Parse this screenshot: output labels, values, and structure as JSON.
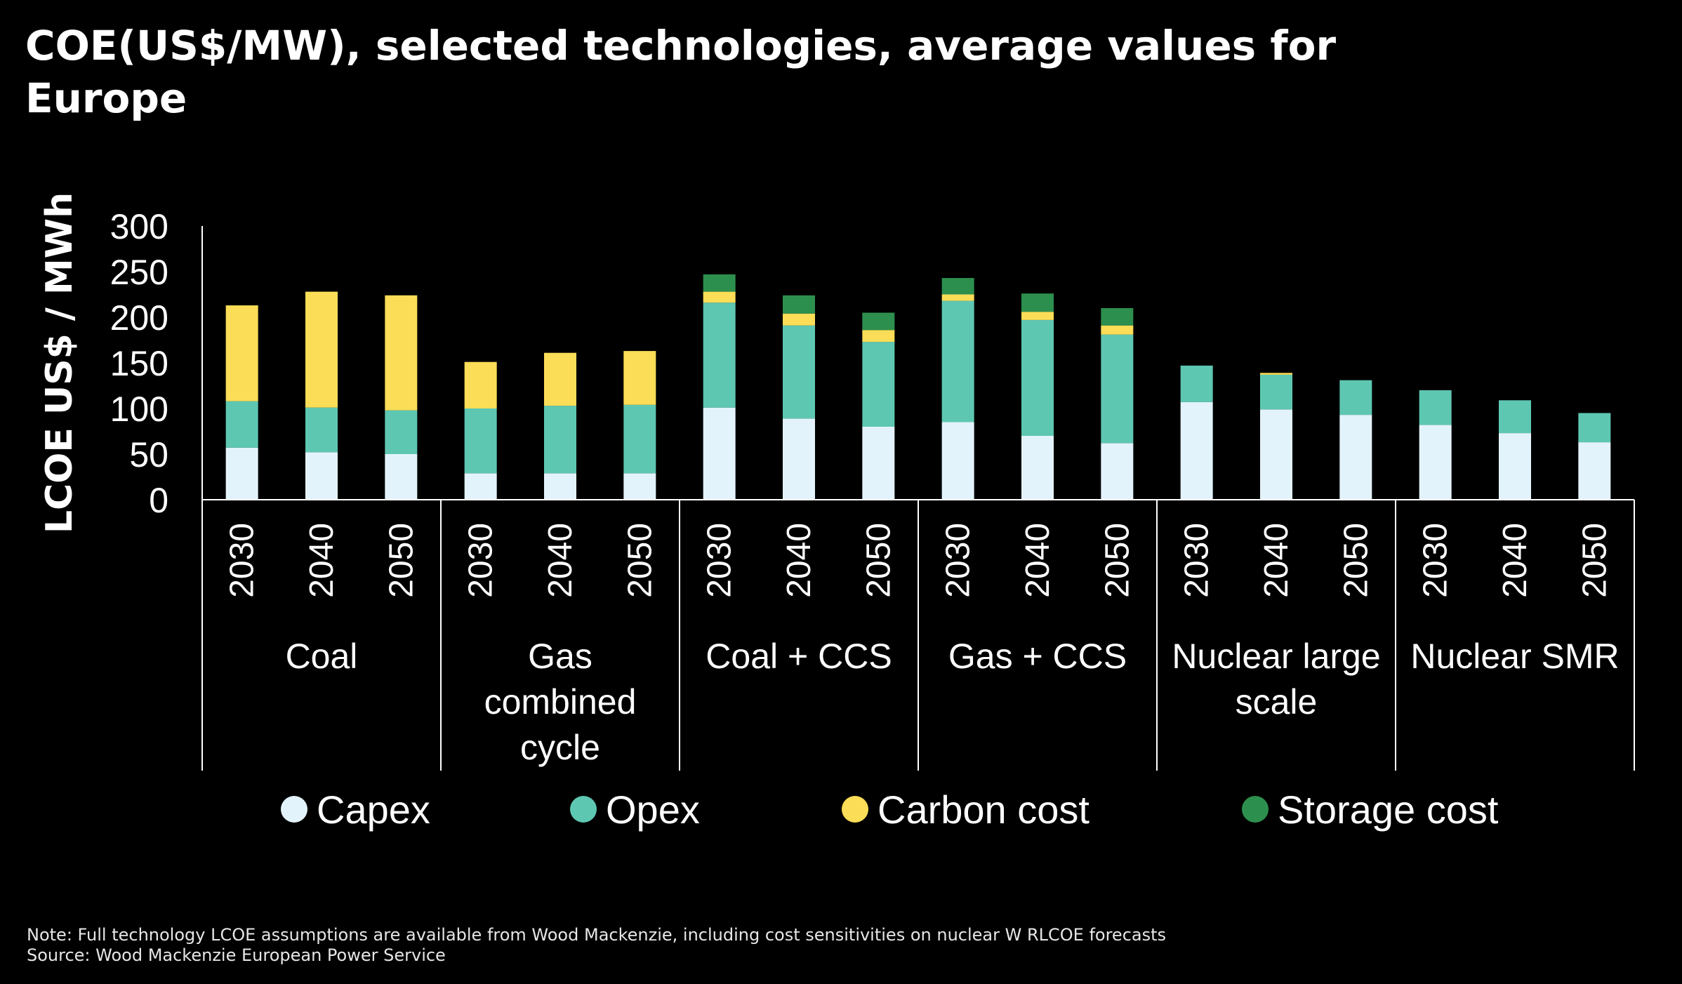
{
  "chart_data": {
    "type": "bar",
    "stacked": true,
    "title": "COE(US$/MW), selected technologies, average values for Europe",
    "ylabel": "LCOE US$ / MWh",
    "ylim": [
      0,
      300
    ],
    "yticks": [
      0,
      50,
      100,
      150,
      200,
      250,
      300
    ],
    "grid": false,
    "legend_position": "bottom",
    "groups": [
      {
        "label": "Coal",
        "years": [
          "2030",
          "2040",
          "2050"
        ]
      },
      {
        "label": "Gas combined cycle",
        "years": [
          "2030",
          "2040",
          "2050"
        ]
      },
      {
        "label": "Coal + CCS",
        "years": [
          "2030",
          "2040",
          "2050"
        ]
      },
      {
        "label": "Gas + CCS",
        "years": [
          "2030",
          "2040",
          "2050"
        ]
      },
      {
        "label": "Nuclear large scale",
        "years": [
          "2030",
          "2040",
          "2050"
        ]
      },
      {
        "label": "Nuclear SMR",
        "years": [
          "2030",
          "2040",
          "2050"
        ]
      }
    ],
    "series": [
      {
        "name": "Capex",
        "color": "#e3f3fc",
        "values": [
          57,
          52,
          50,
          29,
          29,
          29,
          101,
          89,
          80,
          85,
          70,
          62,
          107,
          99,
          93,
          82,
          73,
          63
        ]
      },
      {
        "name": "Opex",
        "color": "#5ec7b2",
        "values": [
          51,
          49,
          48,
          71,
          74,
          75,
          115,
          102,
          93,
          133,
          127,
          119,
          40,
          38,
          38,
          38,
          36,
          32
        ]
      },
      {
        "name": "Carbon cost",
        "color": "#fbdd57",
        "values": [
          105,
          127,
          126,
          51,
          58,
          59,
          12,
          13,
          13,
          7,
          9,
          10,
          0,
          2,
          0,
          0,
          0,
          0
        ]
      },
      {
        "name": "Storage cost",
        "color": "#2d8f4e",
        "values": [
          0,
          0,
          0,
          0,
          0,
          0,
          19,
          20,
          19,
          18,
          20,
          19,
          0,
          0,
          0,
          0,
          0,
          0
        ]
      }
    ]
  },
  "footnotes": {
    "note": "Note: Full technology LCOE assumptions are available from Wood Mackenzie, including cost sensitivities on nuclear W RLCOE forecasts",
    "source": "Source: Wood Mackenzie European Power Service"
  }
}
